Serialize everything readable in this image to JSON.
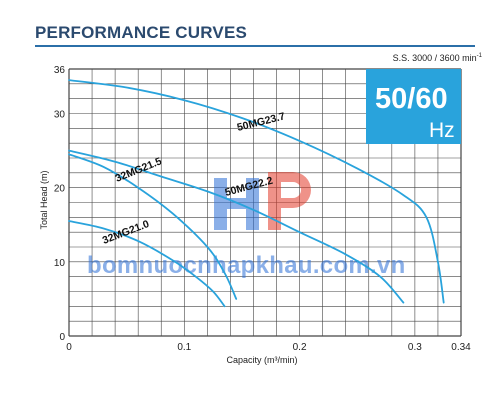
{
  "title": "PERFORMANCE CURVES",
  "speed_note": {
    "text": "S.S. 3000 / 3600 min",
    "sup": "-1"
  },
  "badge": {
    "freq": "50/60",
    "unit": "Hz"
  },
  "watermark": {
    "text": "bomnuocnhapkhau.com.vn",
    "logo": "HP-logo"
  },
  "colors": {
    "curve": "#29a3dc",
    "badge": "#29a3dc",
    "grid": "#444444",
    "title": "#2b4a6f"
  },
  "chart_data": {
    "type": "line",
    "xlabel": "Capacity (m³/min)",
    "ylabel": "Total Head (m)",
    "xlim": [
      0,
      0.34
    ],
    "ylim": [
      0,
      36
    ],
    "x_ticks": [
      {
        "value": 0,
        "label": "0"
      },
      {
        "value": 0.1,
        "label": "0.1"
      },
      {
        "value": 0.2,
        "label": "0.2"
      },
      {
        "value": 0.3,
        "label": "0.3"
      },
      {
        "value": 0.34,
        "label": "0.34"
      }
    ],
    "y_ticks": [
      {
        "value": 0,
        "label": "0"
      },
      {
        "value": 10,
        "label": "10"
      },
      {
        "value": 20,
        "label": "20"
      },
      {
        "value": 30,
        "label": "30"
      },
      {
        "value": 36,
        "label": "36"
      }
    ],
    "grid": true,
    "series": [
      {
        "name": "50MG23.7",
        "x": [
          0,
          0.05,
          0.1,
          0.15,
          0.2,
          0.25,
          0.29,
          0.31,
          0.32,
          0.325
        ],
        "y": [
          34.5,
          33.5,
          31.8,
          29.4,
          26.3,
          22.6,
          19.0,
          16.0,
          10.0,
          4.5
        ]
      },
      {
        "name": "50MG22.2",
        "x": [
          0,
          0.04,
          0.08,
          0.12,
          0.16,
          0.2,
          0.24,
          0.27,
          0.29
        ],
        "y": [
          25.0,
          23.5,
          21.5,
          19.5,
          17.0,
          14.0,
          11.0,
          8.0,
          4.5
        ]
      },
      {
        "name": "32MG21.5",
        "x": [
          0,
          0.03,
          0.06,
          0.09,
          0.12,
          0.135,
          0.145
        ],
        "y": [
          24.5,
          22.8,
          20.0,
          16.5,
          12.0,
          8.5,
          5.0
        ]
      },
      {
        "name": "32MG21.0",
        "x": [
          0,
          0.03,
          0.06,
          0.09,
          0.11,
          0.125,
          0.135
        ],
        "y": [
          15.5,
          14.5,
          12.8,
          10.2,
          8.0,
          6.0,
          4.0
        ]
      }
    ]
  }
}
